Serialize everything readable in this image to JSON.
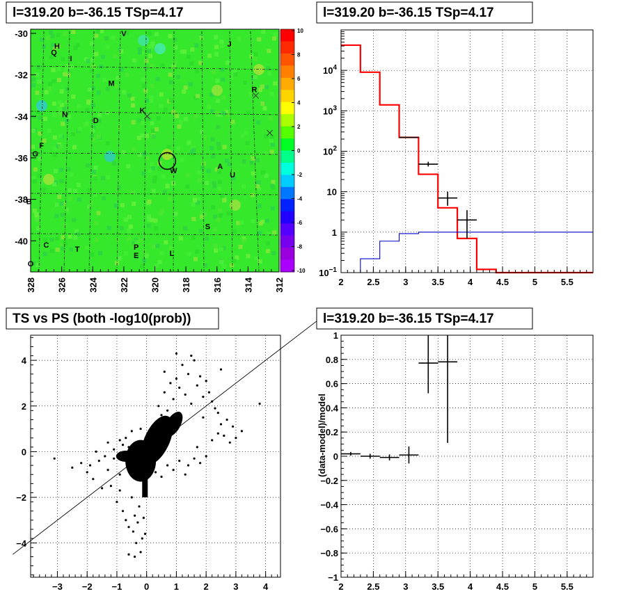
{
  "chart_data": [
    {
      "type": "heatmap",
      "title": "l=319.20 b=-36.15 TSp=4.17",
      "xlabel": "",
      "ylabel": "",
      "xlim": [
        328,
        312
      ],
      "ylim": [
        -41.5,
        -29.8
      ],
      "x_ticks": [
        "328",
        "326",
        "324",
        "322",
        "320",
        "318",
        "316",
        "314",
        "312"
      ],
      "y_ticks": [
        "-30",
        "-32",
        "-34",
        "-36",
        "-38",
        "-40"
      ],
      "zlim": [
        -10,
        10
      ],
      "palette_ticks": [
        "10",
        "8",
        "6",
        "4",
        "2",
        "0",
        "-2",
        "-4",
        "-6",
        "-8",
        "-10"
      ],
      "circle": {
        "l": 319.2,
        "b": -36.15
      },
      "crosses": [
        {
          "l": 320.5,
          "b": -34.0
        },
        {
          "l": 313.5,
          "b": -33.0
        },
        {
          "l": 312.6,
          "b": -34.8
        }
      ],
      "region_labels": [
        {
          "t": "V",
          "l": 322.0,
          "b": -30.0
        },
        {
          "t": "J",
          "l": 315.2,
          "b": -30.5
        },
        {
          "t": "H",
          "l": 326.3,
          "b": -30.6
        },
        {
          "t": "Q",
          "l": 326.5,
          "b": -30.9
        },
        {
          "t": "I",
          "l": 325.4,
          "b": -31.2
        },
        {
          "t": "M",
          "l": 322.8,
          "b": -32.4
        },
        {
          "t": "R",
          "l": 313.6,
          "b": -32.7
        },
        {
          "t": "K",
          "l": 320.8,
          "b": -33.7
        },
        {
          "t": "N",
          "l": 325.8,
          "b": -33.9
        },
        {
          "t": "D",
          "l": 323.8,
          "b": -34.2
        },
        {
          "t": "F",
          "l": 327.3,
          "b": -35.4
        },
        {
          "t": "G",
          "l": 327.7,
          "b": -35.8
        },
        {
          "t": "A",
          "l": 315.8,
          "b": -36.4
        },
        {
          "t": "W",
          "l": 318.8,
          "b": -36.6
        },
        {
          "t": "U",
          "l": 315.0,
          "b": -36.8
        },
        {
          "t": "B",
          "l": 328.1,
          "b": -38.1
        },
        {
          "t": "S",
          "l": 316.6,
          "b": -39.3
        },
        {
          "t": "C",
          "l": 327.0,
          "b": -40.2
        },
        {
          "t": "T",
          "l": 325.0,
          "b": -40.4
        },
        {
          "t": "P",
          "l": 321.2,
          "b": -40.3
        },
        {
          "t": "E",
          "l": 321.2,
          "b": -40.7
        },
        {
          "t": "L",
          "l": 318.9,
          "b": -40.6
        },
        {
          "t": "O",
          "l": 328.0,
          "b": -41.1
        }
      ]
    },
    {
      "type": "line",
      "title": "l=319.20 b=-36.15 TSp=4.17",
      "xlabel": "",
      "ylabel": "",
      "xlim": [
        2,
        5.9
      ],
      "ylim": [
        0.1,
        100000
      ],
      "yscale": "log",
      "x_ticks": [
        "2",
        "2.5",
        "3",
        "3.5",
        "4",
        "4.5",
        "5",
        "5.5"
      ],
      "y_ticks": [
        {
          "v": 10000,
          "b": "10",
          "e": "4"
        },
        {
          "v": 1000,
          "b": "10",
          "e": "3"
        },
        {
          "v": 100,
          "b": "10",
          "e": "2"
        },
        {
          "v": 10,
          "b": "10",
          "e": ""
        },
        {
          "v": 1,
          "b": "1",
          "e": ""
        },
        {
          "v": 0.1,
          "b": "10",
          "e": "−1"
        }
      ],
      "grid": true,
      "series": [
        {
          "color": "#ff0000",
          "edges": [
            2,
            2.3,
            2.6,
            2.9,
            3.2,
            3.5,
            3.8,
            4.1,
            4.4,
            5.9
          ],
          "values": [
            42000,
            9000,
            1400,
            220,
            27,
            4,
            0.7,
            0.12,
            0.1
          ]
        },
        {
          "color": "#0000cc",
          "edges": [
            2,
            2.3,
            2.6,
            2.9,
            3.2,
            3.5,
            3.8,
            4.1,
            4.4,
            5.9
          ],
          "values": [
            0.1,
            0.22,
            0.6,
            0.92,
            1.0,
            1.0,
            1.0,
            1.0,
            1.0
          ]
        }
      ],
      "points": [
        {
          "x": 3.05,
          "y": 220,
          "xerr": 0.15,
          "ylo": 215,
          "yhi": 225
        },
        {
          "x": 3.35,
          "y": 48,
          "xerr": 0.15,
          "ylo": 42,
          "yhi": 55
        },
        {
          "x": 3.65,
          "y": 7,
          "xerr": 0.15,
          "ylo": 4.5,
          "yhi": 10
        },
        {
          "x": 3.95,
          "y": 2,
          "xerr": 0.15,
          "ylo": 0.7,
          "yhi": 3.5
        }
      ]
    },
    {
      "type": "scatter",
      "title": "TS vs PS (both -log10(prob))",
      "xlabel": "",
      "ylabel": "",
      "xlim": [
        -3.9,
        4.5
      ],
      "ylim": [
        -5.5,
        5.1
      ],
      "x_ticks": [
        "−3",
        "−2",
        "−1",
        "0",
        "1",
        "2",
        "3",
        "4"
      ],
      "y_ticks": [
        "4",
        "2",
        "0",
        "−2",
        "−4"
      ],
      "grid": true,
      "diagonal": true,
      "points": [
        [
          -3.1,
          -0.3
        ],
        [
          -2.5,
          -0.7
        ],
        [
          -2.2,
          -0.5
        ],
        [
          -2.0,
          -0.9
        ],
        [
          -1.9,
          -0.6
        ],
        [
          -1.8,
          -1.2
        ],
        [
          -1.7,
          0.0
        ],
        [
          -1.6,
          -0.4
        ],
        [
          -1.5,
          -1.6
        ],
        [
          -1.4,
          -0.2
        ],
        [
          -1.3,
          -0.8
        ],
        [
          -1.2,
          -1.5
        ],
        [
          -1.1,
          0.1
        ],
        [
          -1.0,
          -2.2
        ],
        [
          -0.9,
          -1.0
        ],
        [
          -0.8,
          -2.6
        ],
        [
          -0.7,
          -3.0
        ],
        [
          -0.6,
          -3.3
        ],
        [
          -0.5,
          -2.0
        ],
        [
          -0.45,
          -3.5
        ],
        [
          -0.4,
          -2.8
        ],
        [
          -0.35,
          -4.0
        ],
        [
          -0.3,
          -3.1
        ],
        [
          -0.25,
          -2.4
        ],
        [
          -0.2,
          -4.4
        ],
        [
          -0.15,
          -3.8
        ],
        [
          -0.1,
          -2.9
        ],
        [
          -0.05,
          -3.6
        ],
        [
          -0.6,
          -4.5
        ],
        [
          -0.4,
          -4.6
        ],
        [
          -0.9,
          0.5
        ],
        [
          -0.8,
          0.3
        ],
        [
          -0.7,
          0.6
        ],
        [
          -0.6,
          0.2
        ],
        [
          -0.5,
          0.9
        ],
        [
          -0.3,
          0.4
        ],
        [
          -0.2,
          1.0
        ],
        [
          -1.1,
          -0.3
        ],
        [
          -1.3,
          0.4
        ],
        [
          -0.9,
          -1.7
        ],
        [
          0.3,
          1.2
        ],
        [
          0.4,
          2.0
        ],
        [
          0.5,
          1.6
        ],
        [
          0.6,
          2.6
        ],
        [
          0.7,
          1.8
        ],
        [
          0.8,
          3.0
        ],
        [
          0.9,
          2.3
        ],
        [
          1.0,
          3.2
        ],
        [
          1.1,
          2.8
        ],
        [
          1.2,
          3.8
        ],
        [
          1.3,
          2.5
        ],
        [
          1.4,
          3.4
        ],
        [
          1.5,
          2.1
        ],
        [
          1.6,
          4.0
        ],
        [
          1.7,
          2.9
        ],
        [
          1.8,
          3.3
        ],
        [
          1.9,
          2.4
        ],
        [
          2.0,
          3.1
        ],
        [
          2.1,
          2.6
        ],
        [
          2.2,
          2.2
        ],
        [
          2.3,
          1.9
        ],
        [
          2.4,
          1.7
        ],
        [
          2.5,
          1.2
        ],
        [
          2.7,
          1.4
        ],
        [
          2.9,
          1.1
        ],
        [
          3.0,
          0.6
        ],
        [
          2.8,
          0.4
        ],
        [
          2.6,
          0.7
        ],
        [
          3.8,
          2.1
        ],
        [
          3.2,
          0.9
        ],
        [
          1.4,
          -0.6
        ],
        [
          1.6,
          -0.3
        ],
        [
          1.8,
          -0.5
        ],
        [
          2.0,
          -0.2
        ],
        [
          1.3,
          -1.0
        ],
        [
          1.7,
          0.2
        ],
        [
          0.9,
          -0.8
        ],
        [
          1.1,
          -0.4
        ],
        [
          2.2,
          0.5
        ],
        [
          2.4,
          0.8
        ],
        [
          0.5,
          -1.1
        ],
        [
          0.7,
          -0.6
        ],
        [
          0.3,
          -0.9
        ],
        [
          1.5,
          4.2
        ],
        [
          1.0,
          4.3
        ],
        [
          0.6,
          3.5
        ],
        [
          2.5,
          3.6
        ],
        [
          1.9,
          1.5
        ]
      ]
    },
    {
      "type": "line",
      "title": "l=319.20 b=-36.15 TSp=4.17",
      "xlabel": "",
      "ylabel": "(data-model)/model",
      "xlim": [
        2,
        5.9
      ],
      "ylim": [
        -1,
        1
      ],
      "x_ticks": [
        "2",
        "2.5",
        "3",
        "3.5",
        "4",
        "4.5",
        "5",
        "5.5"
      ],
      "y_ticks": [
        "1",
        "0.8",
        "0.6",
        "0.4",
        "0.2",
        "0",
        "−0.2",
        "−0.4",
        "−0.6",
        "−0.8",
        "−1"
      ],
      "grid": true,
      "points": [
        {
          "x": 2.15,
          "y": 0.02,
          "xerr": 0.15,
          "ylo": 0.005,
          "yhi": 0.035
        },
        {
          "x": 2.45,
          "y": 0.0,
          "xerr": 0.15,
          "ylo": -0.02,
          "yhi": 0.02
        },
        {
          "x": 2.75,
          "y": -0.01,
          "xerr": 0.15,
          "ylo": -0.035,
          "yhi": 0.015
        },
        {
          "x": 3.05,
          "y": 0.01,
          "xerr": 0.15,
          "ylo": -0.06,
          "yhi": 0.08
        },
        {
          "x": 3.35,
          "y": 0.77,
          "xerr": 0.15,
          "ylo": 0.52,
          "yhi": 1.0
        },
        {
          "x": 3.65,
          "y": 0.78,
          "xerr": 0.15,
          "ylo": 0.11,
          "yhi": 1.0
        }
      ]
    }
  ]
}
